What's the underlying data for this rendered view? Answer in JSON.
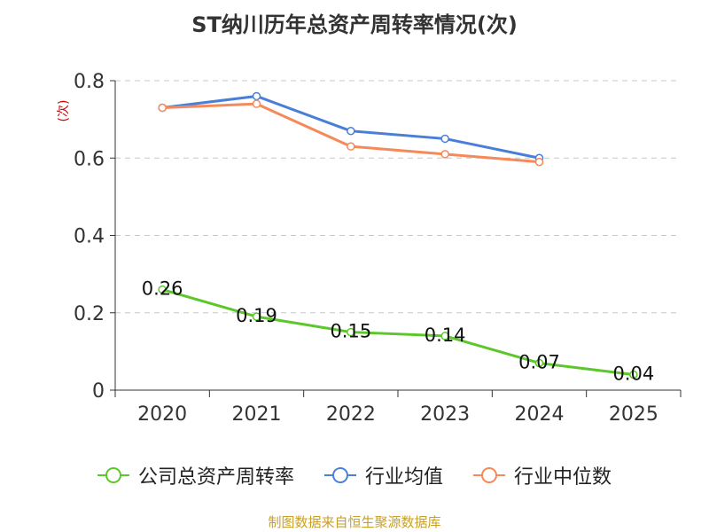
{
  "chart_data": {
    "type": "line",
    "title": "ST纳川历年总资产周转率情况(次)",
    "ylabel": "(次)",
    "xlabel": "",
    "ylim": [
      0,
      0.8
    ],
    "yticks": [
      "0",
      "0.2",
      "0.4",
      "0.6",
      "0.8"
    ],
    "categories": [
      "2020",
      "2021",
      "2022",
      "2023",
      "2024",
      "2025"
    ],
    "series": [
      {
        "name": "公司总资产周转率",
        "color": "#5cc72a",
        "values": [
          0.26,
          0.19,
          0.15,
          0.14,
          0.07,
          0.04
        ],
        "labels": [
          "0.26",
          "0.19",
          "0.15",
          "0.14",
          "0.07",
          "0.04"
        ]
      },
      {
        "name": "行业均值",
        "color": "#4a7fd8",
        "values": [
          0.73,
          0.76,
          0.67,
          0.65,
          0.6,
          null
        ]
      },
      {
        "name": "行业中位数",
        "color": "#f5895a",
        "values": [
          0.73,
          0.74,
          0.63,
          0.61,
          0.59,
          null
        ]
      }
    ],
    "grid": true,
    "legend_position": "bottom"
  },
  "source": "制图数据来自恒生聚源数据库"
}
